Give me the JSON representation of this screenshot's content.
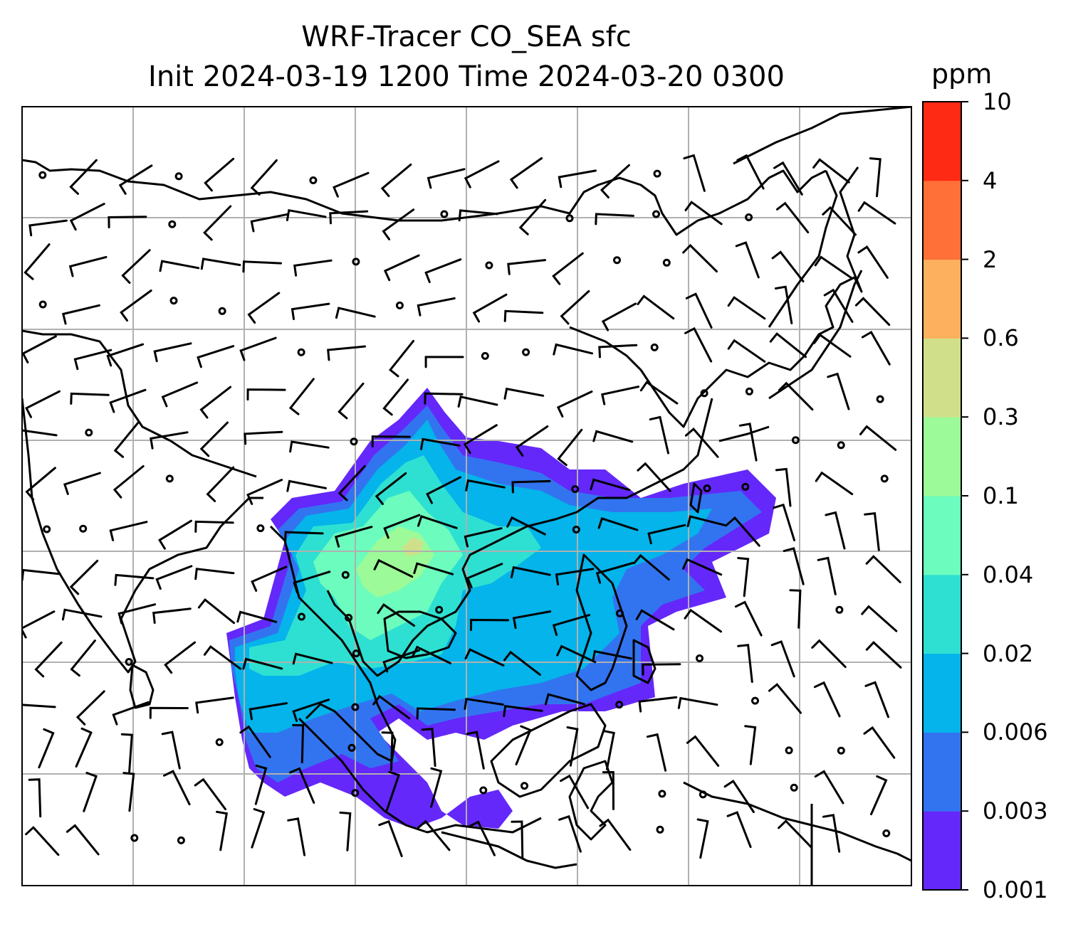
{
  "title": {
    "line1": "WRF-Tracer CO_SEA sfc",
    "line2": "Init 2024-03-19 1200 Time 2024-03-20 0300"
  },
  "colorbar": {
    "unit": "ppm",
    "levels": [
      "0.001",
      "0.003",
      "0.006",
      "0.02",
      "0.04",
      "0.1",
      "0.3",
      "0.6",
      "2",
      "4",
      "10"
    ],
    "colors": [
      "#6428fa",
      "#3274f0",
      "#04b4ea",
      "#2ee0d2",
      "#6cfcbe",
      "#9cfa98",
      "#d0e08a",
      "#fdb05e",
      "#ff7038",
      "#ff2a14"
    ]
  },
  "map": {
    "grid": true,
    "gridlines_lon": 7,
    "gridlines_lat": 6,
    "wind_field": "barbs",
    "calm_marker": "circle"
  }
}
